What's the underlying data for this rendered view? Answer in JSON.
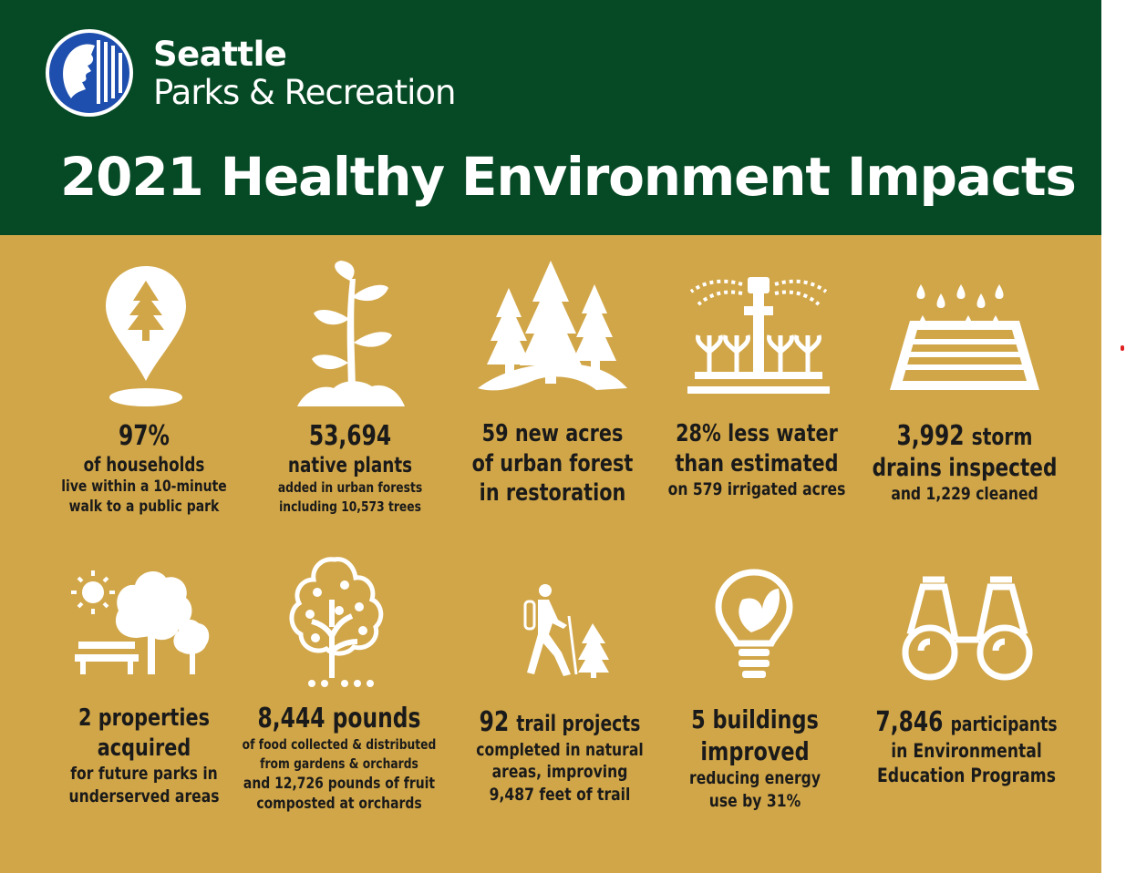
{
  "header": {
    "brand_line1": "Seattle",
    "brand_line2": "Parks & Recreation",
    "title": "2021 Healthy Environment Impacts"
  },
  "colors": {
    "header_bg": "#064925",
    "body_bg": "#d1a648",
    "text": "#1a1a1a",
    "icon": "#ffffff"
  },
  "stats": [
    {
      "icon": "map-pin-tree-icon",
      "lines": [
        "97%",
        "of households",
        "live within a 10-minute",
        "walk to a public park"
      ]
    },
    {
      "icon": "sprout-icon",
      "lines": [
        "53,694",
        "native plants",
        "added in urban forests",
        "including 10,573 trees"
      ]
    },
    {
      "icon": "forest-icon",
      "lines": [
        "59 new acres",
        "of urban forest",
        "in restoration"
      ]
    },
    {
      "icon": "sprinkler-icon",
      "lines": [
        "28% less water",
        "than estimated",
        "on 579 irrigated acres"
      ]
    },
    {
      "icon": "storm-drain-icon",
      "lines": [
        "3,992",
        "storm",
        "drains inspected",
        "and 1,229 cleaned"
      ]
    },
    {
      "icon": "park-bench-icon",
      "lines": [
        "2 properties",
        "acquired",
        "for future parks in",
        "underserved areas"
      ]
    },
    {
      "icon": "fruit-tree-icon",
      "lines": [
        "8,444 pounds",
        "of food collected & distributed",
        "from gardens & orchards",
        "and 12,726 pounds of fruit",
        "composted at orchards"
      ]
    },
    {
      "icon": "hiker-icon",
      "lines": [
        "92",
        "trail projects",
        "completed in natural",
        "areas, improving",
        "9,487 feet of trail"
      ]
    },
    {
      "icon": "lightbulb-leaf-icon",
      "lines": [
        "5 buildings",
        "improved",
        "reducing energy",
        "use by 31%"
      ]
    },
    {
      "icon": "binoculars-icon",
      "lines": [
        "7,846",
        "participants",
        "in Environmental",
        "Education Programs"
      ]
    }
  ]
}
